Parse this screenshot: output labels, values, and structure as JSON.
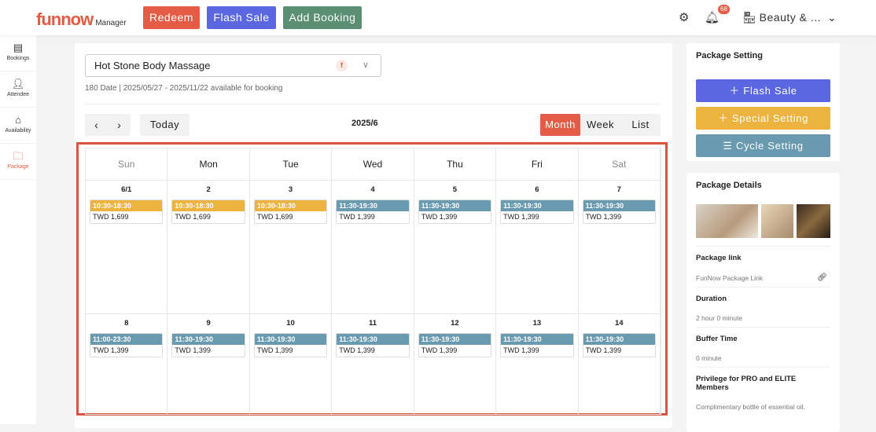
{
  "header": {
    "logo": "funnow",
    "logo_sub": "Manager",
    "redeem": "Redeem",
    "flash_sale": "Flash Sale",
    "add_booking": "Add Booking",
    "notifications": "68",
    "store": "Beauty & ...",
    "colors": {
      "redeem": "#e45c45",
      "flash": "#5b67e0",
      "add": "#5a8f74"
    }
  },
  "sidebar": {
    "items": [
      {
        "label": "Bookings",
        "icon": "document-icon"
      },
      {
        "label": "Attendee",
        "icon": "user-icon"
      },
      {
        "label": "Availability",
        "icon": "home-icon"
      },
      {
        "label": "Package",
        "icon": "folder-icon",
        "active": true
      }
    ]
  },
  "main": {
    "package": "Hot Stone Body Massage",
    "availability": "180 Date | 2025/05/27 - 2025/11/22 available for booking",
    "today": "Today",
    "month": "2025/6",
    "views": [
      "Month",
      "Week",
      "List"
    ],
    "active_view": "Month",
    "weekdays": [
      "Sun",
      "Mon",
      "Tue",
      "Wed",
      "Thu",
      "Fri",
      "Sat"
    ],
    "weeks": [
      [
        {
          "d": "6/1",
          "t": "10:30-18:30",
          "p": "TWD 1,699",
          "c": "special"
        },
        {
          "d": "2",
          "t": "10:30-18:30",
          "p": "TWD 1,699",
          "c": "special"
        },
        {
          "d": "3",
          "t": "10:30-18:30",
          "p": "TWD 1,699",
          "c": "special"
        },
        {
          "d": "4",
          "t": "11:30-19:30",
          "p": "TWD 1,399",
          "c": "cycle"
        },
        {
          "d": "5",
          "t": "11:30-19:30",
          "p": "TWD 1,399",
          "c": "cycle"
        },
        {
          "d": "6",
          "t": "11:30-19:30",
          "p": "TWD 1,399",
          "c": "cycle"
        },
        {
          "d": "7",
          "t": "11:30-19:30",
          "p": "TWD 1,399",
          "c": "cycle"
        }
      ],
      [
        {
          "d": "8",
          "t": "11:00-23:30",
          "p": "TWD 1,399",
          "c": "cycle"
        },
        {
          "d": "9",
          "t": "11:30-19:30",
          "p": "TWD 1,399",
          "c": "cycle"
        },
        {
          "d": "10",
          "t": "11:30-19:30",
          "p": "TWD 1,399",
          "c": "cycle"
        },
        {
          "d": "11",
          "t": "11:30-19:30",
          "p": "TWD 1,399",
          "c": "cycle"
        },
        {
          "d": "12",
          "t": "11:30-19:30",
          "p": "TWD 1,399",
          "c": "cycle"
        },
        {
          "d": "13",
          "t": "11:30-19:30",
          "p": "TWD 1,399",
          "c": "cycle"
        },
        {
          "d": "14",
          "t": "11:30-19:30",
          "p": "TWD 1,399",
          "c": "cycle"
        }
      ]
    ]
  },
  "colors": {
    "special": "#ecb33e",
    "cycle": "#6a9ab0",
    "accent": "#e45c45"
  },
  "package_setting": {
    "title": "Package Setting",
    "flash_sale": "Flash Sale",
    "special_setting": "Special Setting",
    "cycle_setting": "Cycle Setting"
  },
  "package_details": {
    "title": "Package Details",
    "link_label": "Package link",
    "link_value": "FunNow Package Link",
    "duration_label": "Duration",
    "duration": "2 hour 0 minute",
    "buffer_label": "Buffer Time",
    "buffer": "0 minute",
    "privilege_label": "Privilege for PRO and ELITE Members",
    "privilege": "Complimentary bottle of essential oil."
  }
}
